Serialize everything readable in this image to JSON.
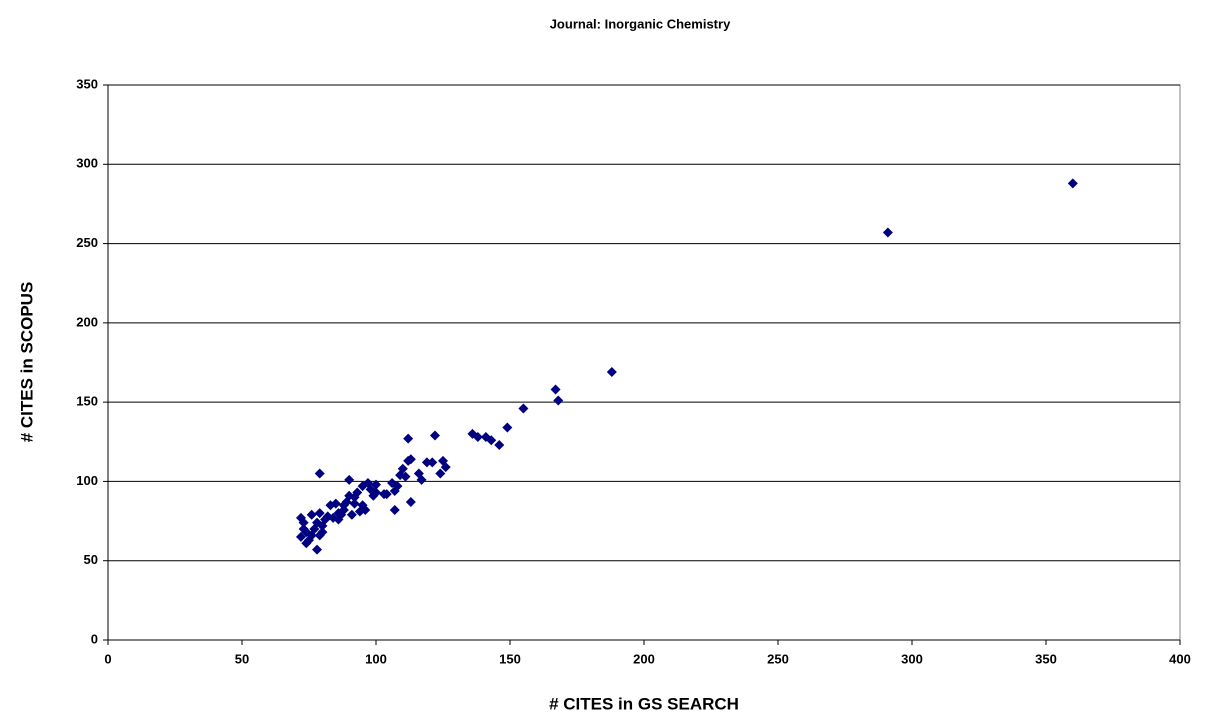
{
  "chart_data": {
    "type": "scatter",
    "title": "Journal: Inorganic Chemistry",
    "x_label": "# CITES in GS SEARCH",
    "y_label": "# CITES in SCOPUS",
    "color": "#000080",
    "grid": true,
    "xlim": [
      0,
      400
    ],
    "xticks": [
      0,
      50,
      100,
      150,
      200,
      250,
      300,
      350,
      400
    ],
    "ylim": [
      0,
      350
    ],
    "yticks": [
      0,
      50,
      100,
      150,
      200,
      250,
      300,
      350
    ],
    "x": [
      360,
      291,
      188,
      167,
      168,
      155,
      149,
      146,
      143,
      141,
      138,
      136,
      126,
      125,
      124,
      122,
      121,
      119,
      117,
      116,
      113,
      113,
      112,
      112,
      111,
      110,
      109,
      108,
      107,
      107,
      106,
      104,
      103,
      100,
      100,
      99,
      98,
      97,
      96,
      95,
      94,
      93,
      92,
      91,
      90,
      90,
      89,
      88,
      87,
      86,
      85,
      84,
      83,
      82,
      81,
      80,
      79,
      79,
      78,
      78,
      77,
      76,
      76,
      75,
      74,
      74,
      73,
      72,
      72,
      73,
      88,
      92,
      95,
      86,
      80,
      79
    ],
    "values": [
      288,
      257,
      169,
      158,
      151,
      146,
      134,
      123,
      126,
      128,
      128,
      130,
      109,
      113,
      105,
      129,
      112,
      112,
      101,
      105,
      114,
      87,
      127,
      113,
      103,
      108,
      104,
      97,
      82,
      94,
      99,
      92,
      92,
      93,
      98,
      91,
      95,
      99,
      82,
      97,
      81,
      93,
      86,
      79,
      101,
      91,
      87,
      82,
      79,
      80,
      86,
      77,
      85,
      78,
      76,
      72,
      105,
      80,
      74,
      57,
      70,
      79,
      66,
      63,
      61,
      68,
      70,
      77,
      65,
      74,
      85,
      90,
      85,
      76,
      68,
      66
    ]
  }
}
